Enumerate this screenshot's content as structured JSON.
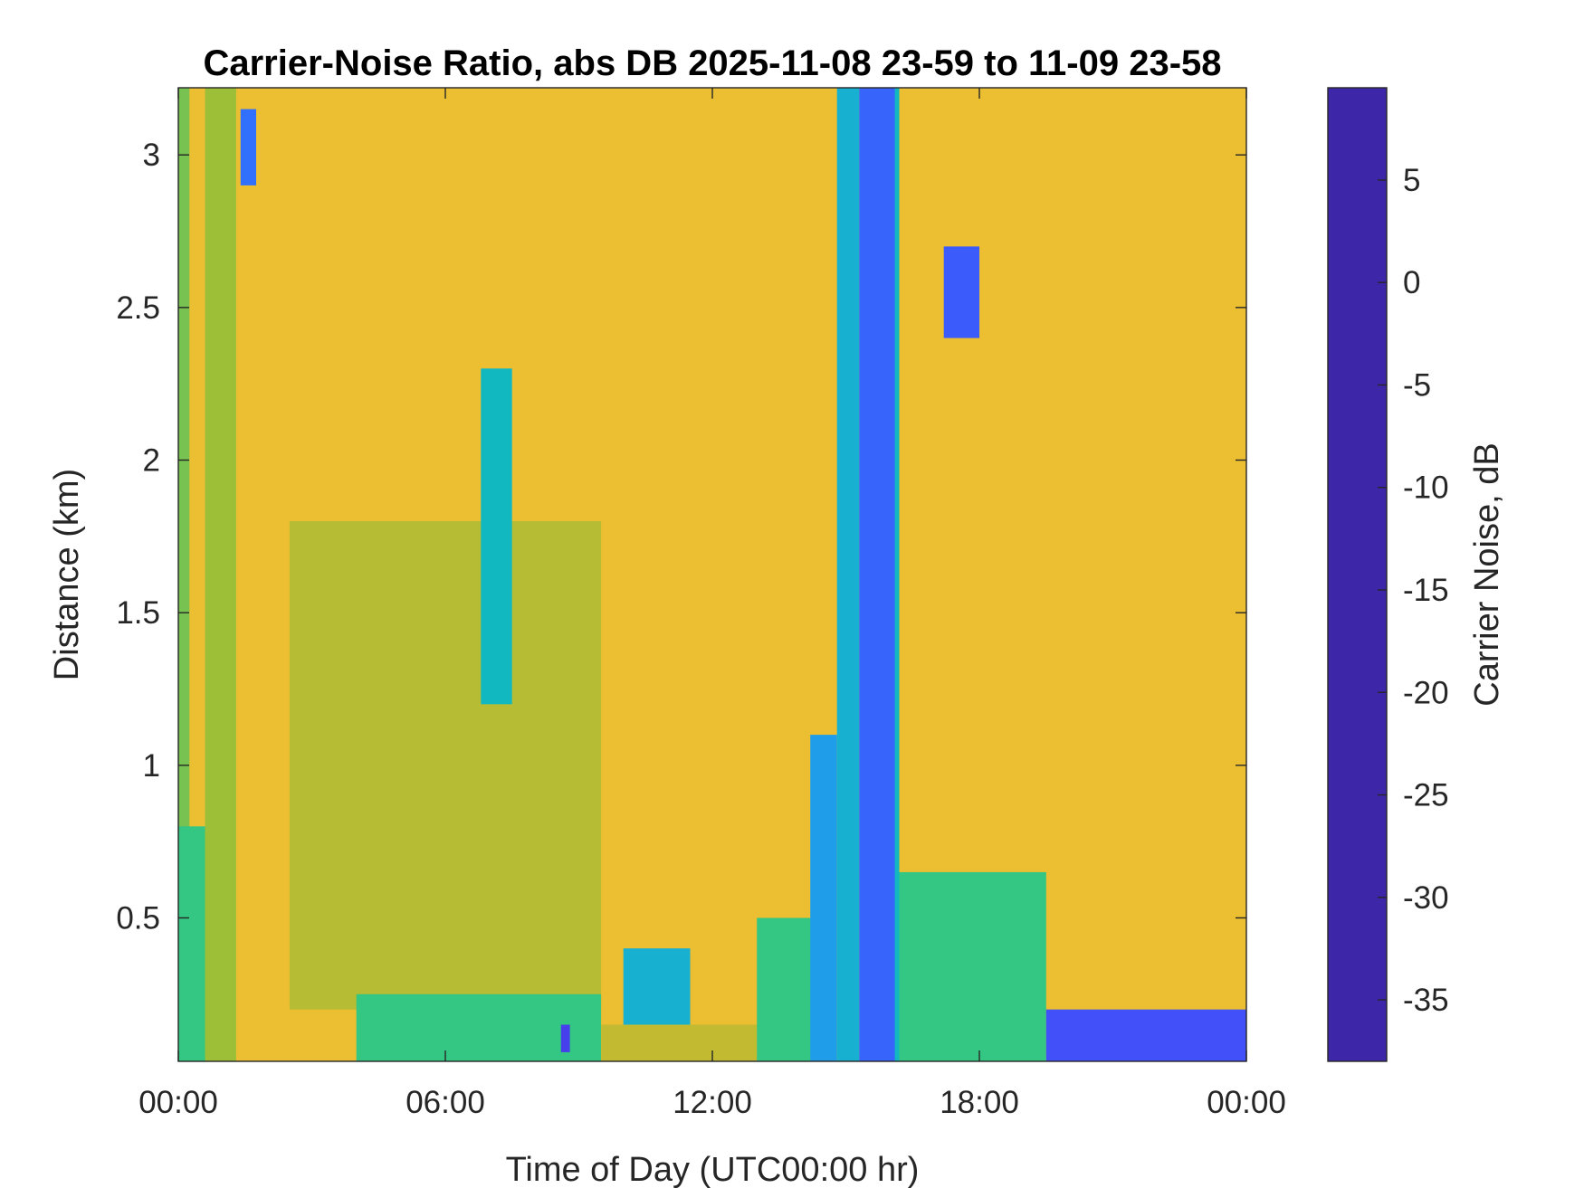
{
  "chart_data": {
    "type": "heatmap",
    "title": "Carrier-Noise Ratio, abs DB 2025-11-08 23-59 to 11-09 23-58",
    "xlabel": "Time of Day (UTC00:00 hr)",
    "ylabel": "Distance (km)",
    "colorbar_label": "Carrier Noise, dB",
    "x_unit": "hours",
    "x_range": [
      0,
      24
    ],
    "x_ticks": [
      {
        "value": 0,
        "label": "00:00"
      },
      {
        "value": 6,
        "label": "06:00"
      },
      {
        "value": 12,
        "label": "12:00"
      },
      {
        "value": 18,
        "label": "18:00"
      },
      {
        "value": 24,
        "label": "00:00"
      }
    ],
    "y_range": [
      0.03,
      3.22
    ],
    "y_ticks": [
      {
        "value": 0.5,
        "label": "0.5"
      },
      {
        "value": 1,
        "label": "1"
      },
      {
        "value": 1.5,
        "label": "1.5"
      },
      {
        "value": 2,
        "label": "2"
      },
      {
        "value": 2.5,
        "label": "2.5"
      },
      {
        "value": 3,
        "label": "3"
      }
    ],
    "color_range": [
      -38,
      9.5
    ],
    "color_ticks": [
      {
        "value": 5,
        "label": "5"
      },
      {
        "value": 0,
        "label": "0"
      },
      {
        "value": -5,
        "label": "-5"
      },
      {
        "value": -10,
        "label": "-10"
      },
      {
        "value": -15,
        "label": "-15"
      },
      {
        "value": -20,
        "label": "-20"
      },
      {
        "value": -25,
        "label": "-25"
      },
      {
        "value": -30,
        "label": "-30"
      },
      {
        "value": -35,
        "label": "-35"
      }
    ],
    "colormap": [
      "#3e26a8",
      "#4743f8",
      "#2c7bfe",
      "#1ca9e0",
      "#0cbfb2",
      "#3cc87a",
      "#a0be35",
      "#e0b830",
      "#f9c434",
      "#f9fb15"
    ],
    "background_value": -30,
    "features": [
      {
        "t_start": 0.0,
        "t_end": 0.25,
        "d_min": 0.03,
        "d_max": 3.22,
        "value": -20
      },
      {
        "t_start": 0.0,
        "t_end": 0.6,
        "d_min": 0.03,
        "d_max": 0.8,
        "value": -16
      },
      {
        "t_start": 0.6,
        "t_end": 1.3,
        "d_min": 0.03,
        "d_max": 3.22,
        "value": -22
      },
      {
        "t_start": 1.4,
        "t_end": 1.75,
        "d_min": 2.9,
        "d_max": 3.15,
        "value": 0
      },
      {
        "t_start": 2.5,
        "t_end": 9.5,
        "d_min": 0.2,
        "d_max": 1.8,
        "value": -24
      },
      {
        "t_start": 4.0,
        "t_end": 9.5,
        "d_min": 0.03,
        "d_max": 0.25,
        "value": -16
      },
      {
        "t_start": 6.8,
        "t_end": 7.5,
        "d_min": 1.2,
        "d_max": 2.3,
        "value": -10
      },
      {
        "t_start": 8.6,
        "t_end": 8.8,
        "d_min": 0.06,
        "d_max": 0.15,
        "value": 5
      },
      {
        "t_start": 9.5,
        "t_end": 13.0,
        "d_min": 0.03,
        "d_max": 0.15,
        "value": -25
      },
      {
        "t_start": 10.0,
        "t_end": 11.5,
        "d_min": 0.15,
        "d_max": 0.4,
        "value": -8
      },
      {
        "t_start": 13.0,
        "t_end": 14.5,
        "d_min": 0.03,
        "d_max": 0.5,
        "value": -16
      },
      {
        "t_start": 14.2,
        "t_end": 14.8,
        "d_min": 0.03,
        "d_max": 1.1,
        "value": -5
      },
      {
        "t_start": 14.8,
        "t_end": 15.3,
        "d_min": 0.03,
        "d_max": 3.22,
        "value": -8
      },
      {
        "t_start": 15.3,
        "t_end": 16.2,
        "d_min": 0.03,
        "d_max": 3.22,
        "value": 1
      },
      {
        "t_start": 16.1,
        "t_end": 16.2,
        "d_min": 0.03,
        "d_max": 3.22,
        "value": -10
      },
      {
        "t_start": 16.2,
        "t_end": 19.5,
        "d_min": 0.03,
        "d_max": 0.65,
        "value": -16
      },
      {
        "t_start": 17.2,
        "t_end": 18.0,
        "d_min": 2.4,
        "d_max": 2.7,
        "value": 2
      },
      {
        "t_start": 19.5,
        "t_end": 24.0,
        "d_min": 0.03,
        "d_max": 0.2,
        "value": 3
      }
    ]
  }
}
